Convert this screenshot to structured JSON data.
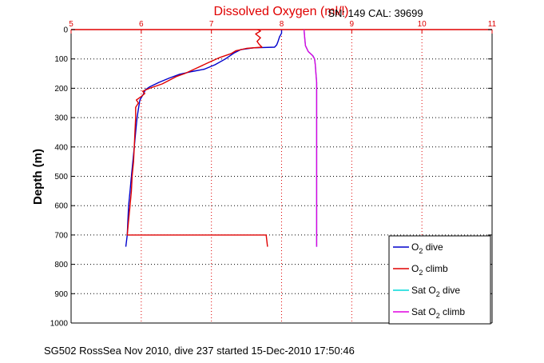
{
  "chart_data": {
    "type": "line",
    "title": "Dissolved Oxygen (ml/l)",
    "sensor_info": "SN: 149   CAL: 39699",
    "ylabel": "Depth (m)",
    "xlabel": "",
    "footer": "SG502 RossSea Nov 2010, dive 237 started 15-Dec-2010 17:50:46",
    "xlim": [
      5,
      11
    ],
    "ylim": [
      0,
      1000
    ],
    "y_reversed": true,
    "x_axis_position": "top",
    "x_ticks": [
      "5",
      "6",
      "7",
      "8",
      "9",
      "10",
      "11"
    ],
    "y_ticks": [
      "0",
      "100",
      "200",
      "300",
      "400",
      "500",
      "600",
      "700",
      "800",
      "900",
      "1000"
    ],
    "grid": true,
    "legend_position": "bottom-right",
    "series": [
      {
        "name": "O2 dive",
        "legend_text": "O",
        "legend_sub": "2",
        "legend_suffix": " dive",
        "color": "#0000cc",
        "points": [
          [
            8.0,
            2
          ],
          [
            8.0,
            12
          ],
          [
            7.97,
            25
          ],
          [
            7.95,
            40
          ],
          [
            7.93,
            52
          ],
          [
            7.9,
            60
          ],
          [
            7.6,
            62
          ],
          [
            7.42,
            68
          ],
          [
            7.32,
            80
          ],
          [
            7.2,
            100
          ],
          [
            7.05,
            120
          ],
          [
            6.9,
            135
          ],
          [
            6.72,
            143
          ],
          [
            6.55,
            152
          ],
          [
            6.4,
            165
          ],
          [
            6.25,
            180
          ],
          [
            6.12,
            195
          ],
          [
            6.06,
            205
          ],
          [
            6.03,
            220
          ],
          [
            5.98,
            240
          ],
          [
            5.96,
            270
          ],
          [
            5.94,
            300
          ],
          [
            5.92,
            350
          ],
          [
            5.9,
            400
          ],
          [
            5.88,
            450
          ],
          [
            5.86,
            500
          ],
          [
            5.84,
            550
          ],
          [
            5.82,
            600
          ],
          [
            5.81,
            650
          ],
          [
            5.8,
            700
          ],
          [
            5.78,
            740
          ]
        ]
      },
      {
        "name": "O2 climb",
        "legend_text": "O",
        "legend_sub": "2",
        "legend_suffix": " climb",
        "color": "#e00000",
        "points": [
          [
            7.8,
            740
          ],
          [
            7.78,
            700
          ],
          [
            5.8,
            700
          ],
          [
            5.82,
            650
          ],
          [
            5.84,
            600
          ],
          [
            5.86,
            550
          ],
          [
            5.87,
            500
          ],
          [
            5.89,
            450
          ],
          [
            5.9,
            400
          ],
          [
            5.91,
            350
          ],
          [
            5.92,
            300
          ],
          [
            5.92,
            265
          ],
          [
            5.96,
            250
          ],
          [
            5.93,
            240
          ],
          [
            6.0,
            228
          ],
          [
            6.05,
            218
          ],
          [
            6.02,
            210
          ],
          [
            6.12,
            200
          ],
          [
            6.3,
            185
          ],
          [
            6.5,
            160
          ],
          [
            6.62,
            150
          ],
          [
            6.8,
            130
          ],
          [
            6.98,
            110
          ],
          [
            7.12,
            95
          ],
          [
            7.28,
            82
          ],
          [
            7.35,
            72
          ],
          [
            7.5,
            64
          ],
          [
            7.72,
            60
          ],
          [
            7.68,
            50
          ],
          [
            7.65,
            40
          ],
          [
            7.7,
            28
          ],
          [
            7.63,
            15
          ],
          [
            7.7,
            5
          ],
          [
            7.66,
            0
          ]
        ]
      },
      {
        "name": "Sat O2 dive",
        "legend_text": "Sat O",
        "legend_sub": "2",
        "legend_suffix": " dive",
        "color": "#00d8d8",
        "points": [
          [
            8.32,
            0
          ],
          [
            8.33,
            30
          ],
          [
            8.34,
            55
          ],
          [
            8.38,
            75
          ],
          [
            8.45,
            90
          ],
          [
            8.47,
            100
          ],
          [
            8.48,
            120
          ],
          [
            8.49,
            150
          ],
          [
            8.5,
            180
          ],
          [
            8.5,
            250
          ],
          [
            8.5,
            400
          ],
          [
            8.5,
            550
          ],
          [
            8.5,
            700
          ],
          [
            8.5,
            740
          ]
        ]
      },
      {
        "name": "Sat O2 climb",
        "legend_text": "Sat O",
        "legend_sub": "2",
        "legend_suffix": " climb",
        "color": "#e000e0",
        "points": [
          [
            8.5,
            740
          ],
          [
            8.5,
            700
          ],
          [
            8.5,
            550
          ],
          [
            8.5,
            400
          ],
          [
            8.5,
            250
          ],
          [
            8.5,
            180
          ],
          [
            8.49,
            150
          ],
          [
            8.48,
            120
          ],
          [
            8.47,
            100
          ],
          [
            8.44,
            88
          ],
          [
            8.38,
            75
          ],
          [
            8.34,
            55
          ],
          [
            8.33,
            30
          ],
          [
            8.32,
            0
          ]
        ]
      }
    ]
  }
}
